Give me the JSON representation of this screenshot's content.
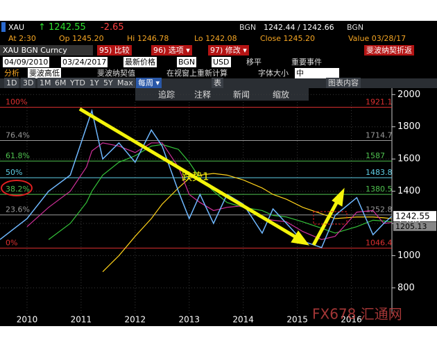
{
  "header": {
    "row1": [
      "XAU",
      "↑ 1242.55",
      "-2.65",
      "BGN",
      "1242.44 / 1242.66",
      "BGN"
    ],
    "row2": [
      "At 2:30",
      "Op 1245.20",
      "Hi 1246.78",
      "Lo 1242.08",
      "Close 1245.20",
      "Value 03/28/17"
    ],
    "row3": [
      "XAU BGN Curncy",
      "95) 比较",
      "96) 选项 ▾",
      "97) 修改 ▾",
      "斐波纳契折返"
    ],
    "row4": [
      "04/09/2010",
      "03/24/2017",
      "最新价格",
      "BGN",
      "USD",
      "移平",
      "重要事件"
    ],
    "row5": [
      "分析",
      "斐波高低",
      "斐波纳契值",
      "在视窗上重新计算",
      "字体大小",
      "中"
    ],
    "row6": [
      "1D",
      "3D",
      "1M",
      "6M",
      "YTD",
      "1Y",
      "5Y",
      "Max",
      "每周 ▾",
      "表",
      "图表内容"
    ],
    "row7": [
      "追踪",
      "注释",
      "新闻",
      "缩放"
    ]
  },
  "chart_data": {
    "type": "line",
    "annotation": "跌势1",
    "watermark": "FX678 汇通网",
    "x": [
      2010.0,
      2010.5,
      2010.9,
      2011.3,
      2011.6,
      2011.7,
      2011.9,
      2012.2,
      2012.5,
      2012.8,
      2013.0,
      2013.3,
      2013.5,
      2013.7,
      2013.95,
      2014.2,
      2014.5,
      2014.85,
      2015.05,
      2015.3,
      2015.6,
      2015.95,
      2016.2,
      2016.6,
      2016.9,
      2017.1,
      2017.24
    ],
    "series": [
      {
        "color": "#ffd21a",
        "values": [
          null,
          null,
          null,
          null,
          null,
          null,
          900,
          1000,
          1120,
          1230,
          1320,
          1420,
          1480,
          1500,
          1510,
          1500,
          1470,
          1420,
          1380,
          1350,
          1300,
          1260,
          1230,
          1240,
          1240,
          1235,
          1230
        ]
      },
      {
        "color": "#35c43a",
        "values": [
          null,
          null,
          1100,
          1200,
          1330,
          1400,
          1500,
          1580,
          1620,
          1680,
          1690,
          1660,
          1580,
          1480,
          1400,
          1330,
          1300,
          1280,
          1250,
          1240,
          1210,
          1170,
          1140,
          1180,
          1220,
          1215,
          1210
        ]
      },
      {
        "color": "#d0309a",
        "values": [
          null,
          1180,
          1300,
          1400,
          1550,
          1650,
          1700,
          1680,
          1640,
          1700,
          1700,
          1550,
          1380,
          1330,
          1280,
          1300,
          1310,
          1230,
          1220,
          1210,
          1150,
          1100,
          1120,
          1270,
          1280,
          1200,
          1205.13
        ]
      },
      {
        "color": "#6fb8ff",
        "values": [
          1100,
          1230,
          1400,
          1500,
          1800,
          1900,
          1600,
          1700,
          1580,
          1780,
          1680,
          1400,
          1230,
          1380,
          1200,
          1380,
          1320,
          1140,
          1290,
          1200,
          1090,
          1050,
          1250,
          1360,
          1130,
          1200,
          1242.55
        ]
      }
    ],
    "last_price": 1242.55,
    "ma_last": 1205.13,
    "fib": [
      {
        "label": "100%",
        "value": 1921.1,
        "color": "#e03030"
      },
      {
        "label": "76.4%",
        "value": 1714.7,
        "color": "#9a9a9a"
      },
      {
        "label": "61.8%",
        "value": 1587.0,
        "color": "#4fc24f"
      },
      {
        "label": "50%",
        "value": 1483.8,
        "color": "#5fd0e8"
      },
      {
        "label": "38.2%",
        "value": 1380.5,
        "color": "#4fc24f"
      },
      {
        "label": "23.6%",
        "value": 1252.8,
        "color": "#9a9a9a"
      },
      {
        "label": "0%",
        "value": 1046.4,
        "color": "#e03030"
      }
    ],
    "xlim": [
      2010.0,
      2017.25
    ],
    "xticks": [
      {
        "value": 2010.5,
        "label": "2010"
      },
      {
        "value": 2011.5,
        "label": "2011"
      },
      {
        "value": 2012.5,
        "label": "2012"
      },
      {
        "value": 2013.5,
        "label": "2013"
      },
      {
        "value": 2014.5,
        "label": "2014"
      },
      {
        "value": 2015.5,
        "label": "2015"
      },
      {
        "value": 2016.5,
        "label": "2016"
      }
    ],
    "ylim": [
      640,
      2040
    ],
    "yticks": [
      800,
      1000,
      1200,
      1400,
      1600,
      1800,
      2000
    ]
  }
}
